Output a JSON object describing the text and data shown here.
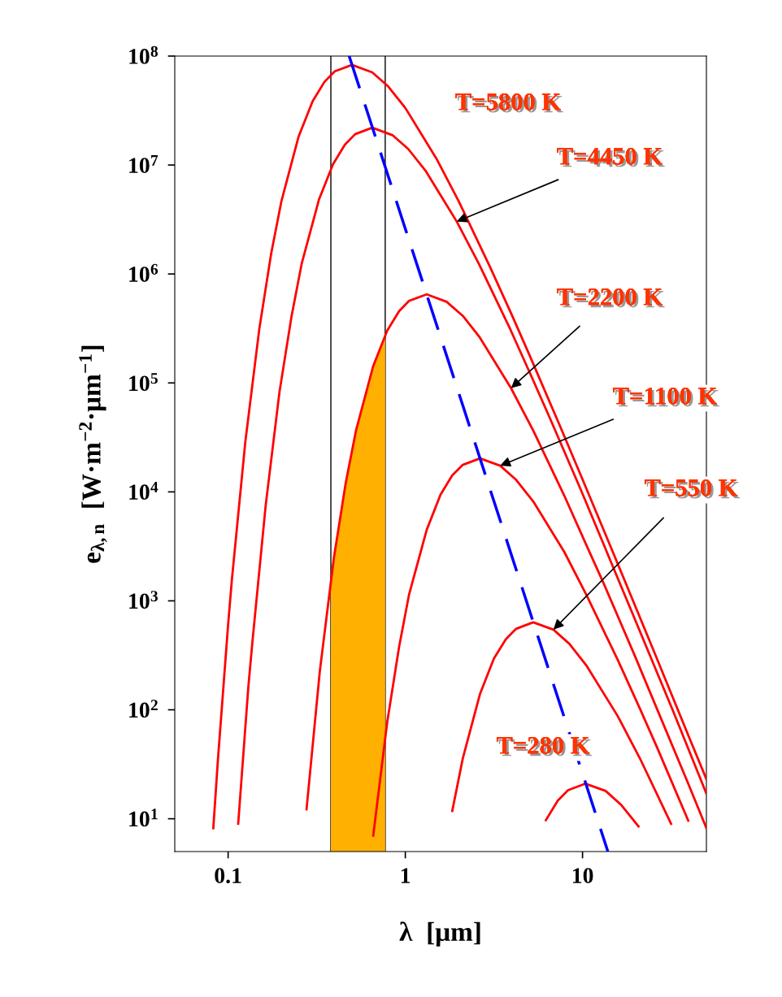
{
  "chart_data": {
    "type": "line",
    "xlabel": "λ  [μm]",
    "ylabel": "e$_{λ,n}$  [W·m$^{−2}$·μm$^{−1}$]",
    "log": "xy",
    "xlim": [
      0.05,
      50
    ],
    "ylim": [
      5,
      100000000
    ],
    "xticks": [
      0.1,
      1,
      10
    ],
    "yticks": [
      {
        "value": 10,
        "label": "10$^{1}$"
      },
      {
        "value": 100,
        "label": "10$^{2}$"
      },
      {
        "value": 1000,
        "label": "10$^{3}$"
      },
      {
        "value": 10000,
        "label": "10$^{4}$"
      },
      {
        "value": 100000,
        "label": "10$^{5}$"
      },
      {
        "value": 1000000,
        "label": "10$^{6}$"
      },
      {
        "value": 10000000,
        "label": "10$^{7}$"
      },
      {
        "value": 100000000,
        "label": "10$^{8}$"
      }
    ],
    "grid": false,
    "legend": false,
    "marker": "none",
    "series": [
      {
        "type": "area",
        "color": "#ffb000",
        "x": [
          0.38,
          0.45,
          0.5,
          0.6,
          0.7,
          0.77
        ],
        "values": [
          1550,
          9680,
          24500,
          86000,
          191000,
          270000
        ]
      },
      {
        "color": "#ff0000",
        "x": [
          0.0825,
          0.0875,
          0.1,
          0.105,
          0.125,
          0.15,
          0.175,
          0.2,
          0.25,
          0.3,
          0.35,
          0.4,
          0.5,
          0.65,
          0.8,
          1,
          1.5,
          2,
          3,
          4,
          5,
          7.5,
          10,
          15,
          25,
          40,
          50
        ],
        "values": [
          8.2,
          34,
          606,
          1560,
          28600,
          314000,
          1540000,
          4680000,
          18300000,
          38500000,
          58100000,
          72500000,
          83000000,
          71000000,
          52700000,
          33400000,
          11400000,
          4660000,
          1170000,
          417000,
          183000,
          39400,
          13000,
          2680,
          360,
          55.6,
          23.1
        ]
      },
      {
        "color": "#ff0000",
        "x": [
          0.114,
          0.13,
          0.137,
          0.163,
          0.195,
          0.228,
          0.26,
          0.326,
          0.391,
          0.456,
          0.521,
          0.651,
          0.846,
          1.04,
          1.3,
          1.95,
          2.6,
          3.91,
          5.21,
          6.51,
          9.77,
          13,
          19.5,
          32.6,
          50
        ],
        "values": [
          9,
          161,
          414,
          7570,
          83000,
          409000,
          1240000,
          4850000,
          10200000,
          15400000,
          19200000,
          22000000,
          18800000,
          14000000,
          8870000,
          3030000,
          1240000,
          311000,
          110000,
          48400,
          10500,
          3450,
          711,
          95.5,
          17
        ]
      },
      {
        "color": "#ff0000",
        "x": [
          0.277,
          0.329,
          0.395,
          0.461,
          0.527,
          0.659,
          0.79,
          0.922,
          1.05,
          1.32,
          1.71,
          2.11,
          2.63,
          3.95,
          5.27,
          7.9,
          10.5,
          13.2,
          19.8,
          26.3,
          39.5,
          50
        ],
        "values": [
          12.2,
          224,
          2460,
          12100,
          36700,
          143000,
          302000,
          455000,
          567000,
          650000,
          556000,
          413000,
          262000,
          89500,
          36500,
          9190,
          3260,
          1430,
          309,
          102,
          21,
          8.2
        ]
      },
      {
        "color": "#ff0000",
        "x": [
          0.659,
          0.79,
          0.922,
          1.05,
          1.32,
          1.58,
          1.84,
          2.11,
          2.64,
          3.43,
          4.22,
          5.27,
          7.9,
          10.5,
          15.8,
          21.1,
          26.4,
          39.5
        ],
        "values": [
          7,
          76.7,
          377,
          1145,
          4480,
          9420,
          14200,
          17700,
          20300,
          17400,
          12900,
          8180,
          2800,
          1140,
          287,
          102,
          44.7,
          9.6
        ]
      },
      {
        "color": "#ff0000",
        "x": [
          1.84,
          2.11,
          2.64,
          3.16,
          3.69,
          4.22,
          5.27,
          6.85,
          8.43,
          10.5,
          15.8,
          21.1,
          31.6
        ],
        "values": [
          11.8,
          35.8,
          140,
          295,
          444,
          554,
          635,
          544,
          403,
          256,
          87.4,
          35.7,
          8.98
        ]
      },
      {
        "color": "#ff0000",
        "x": [
          6.21,
          7.25,
          8.28,
          10.35,
          13.5,
          16.6,
          20.7
        ],
        "values": [
          9.7,
          14.7,
          18.3,
          21,
          18,
          13.3,
          8.5
        ]
      },
      {
        "color": "#0000ff",
        "line_style": "dashed",
        "x": [
          0.482,
          13.9
        ],
        "values": [
          100000000,
          5
        ]
      }
    ],
    "ref_lines": [
      {
        "axis": "x",
        "value": 0.38,
        "color": "#000000"
      },
      {
        "axis": "x",
        "value": 0.77,
        "color": "#000000"
      }
    ],
    "annotations": [
      "T=5800 K",
      {
        "text": "T=4450 K",
        "x": 1.95,
        "y": 3030000
      },
      {
        "text": "T=2200 K",
        "x": 3.95,
        "y": 89500
      },
      {
        "text": "T=1100 K",
        "x": 3.43,
        "y": 17400
      },
      {
        "text": "T=550 K",
        "x": 6.85,
        "y": 544
      },
      "T=280 K"
    ]
  }
}
